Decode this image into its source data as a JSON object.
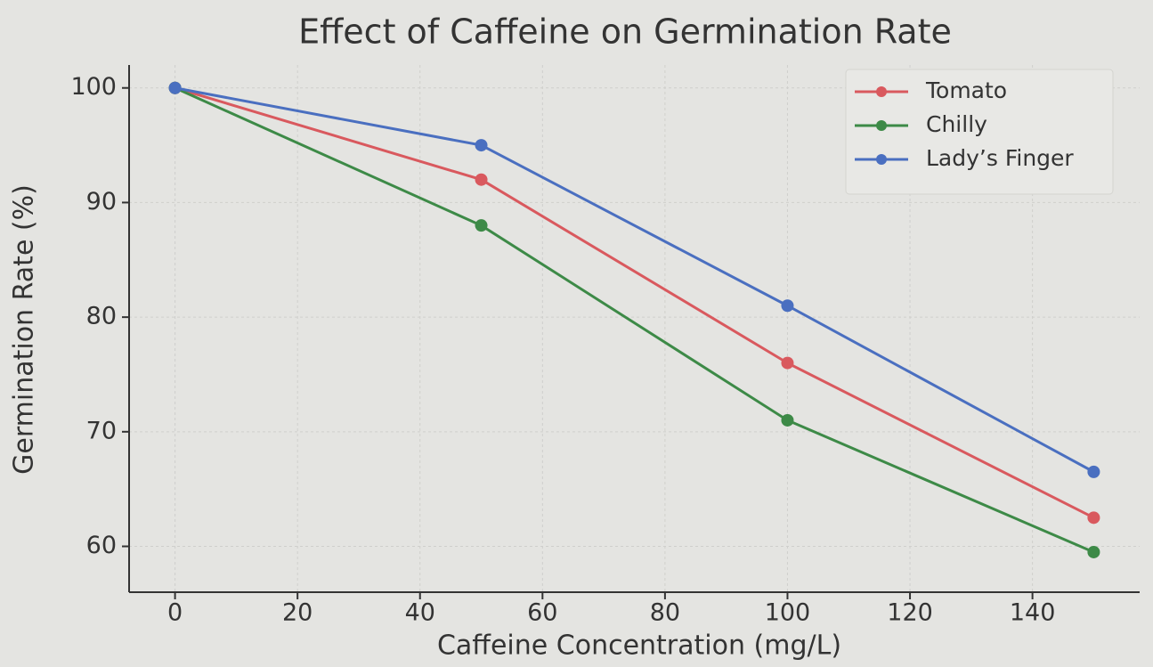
{
  "chart_data": {
    "type": "line",
    "title": "Effect of Caffeine on Germination Rate",
    "x_label": "Caffeine Concentration (mg/L)",
    "y_label": "Germination Rate (%)",
    "x": [
      0,
      50,
      100,
      150
    ],
    "series": [
      {
        "name": "Tomato",
        "color": "#d9595e",
        "values": [
          100,
          92,
          76,
          62.5
        ]
      },
      {
        "name": "Chilly",
        "color": "#3d8a47",
        "values": [
          100,
          88,
          71,
          59.5
        ]
      },
      {
        "name": "Lady’s Finger",
        "color": "#4a6fc0",
        "values": [
          100,
          95,
          81,
          66.5
        ]
      }
    ],
    "xlim": [
      -7.5,
      157.5
    ],
    "xticks": [
      0,
      20,
      40,
      60,
      80,
      100,
      120,
      140
    ],
    "ylim": [
      56,
      102
    ],
    "yticks": [
      60,
      70,
      80,
      90,
      100
    ],
    "grid": true,
    "legend": "upper right"
  }
}
